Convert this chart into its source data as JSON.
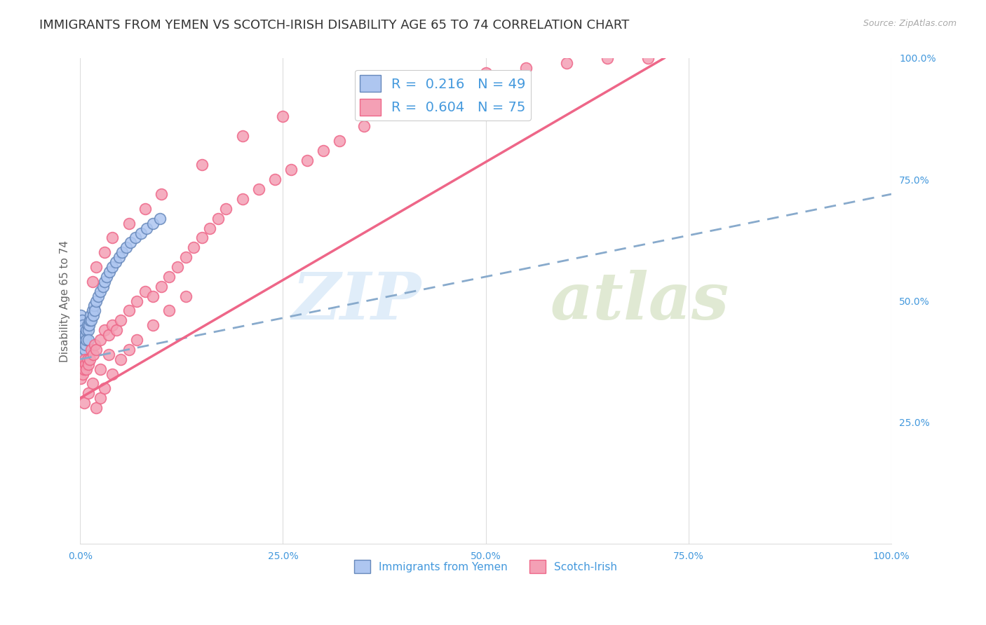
{
  "title": "IMMIGRANTS FROM YEMEN VS SCOTCH-IRISH DISABILITY AGE 65 TO 74 CORRELATION CHART",
  "source": "Source: ZipAtlas.com",
  "ylabel": "Disability Age 65 to 74",
  "xlim": [
    0.0,
    1.0
  ],
  "ylim": [
    0.0,
    1.0
  ],
  "xtick_labels": [
    "0.0%",
    "25.0%",
    "50.0%",
    "75.0%",
    "100.0%"
  ],
  "xtick_positions": [
    0.0,
    0.25,
    0.5,
    0.75,
    1.0
  ],
  "right_ytick_labels": [
    "25.0%",
    "50.0%",
    "75.0%",
    "100.0%"
  ],
  "right_ytick_positions": [
    0.25,
    0.5,
    0.75,
    1.0
  ],
  "legend1_label": "R =  0.216   N = 49",
  "legend2_label": "R =  0.604   N = 75",
  "legend1_color": "#aec6f0",
  "legend2_color": "#f4a0b5",
  "line1_color": "#88aacc",
  "line2_color": "#ee6688",
  "scatter1_color": "#aec6f0",
  "scatter1_edge": "#6688bb",
  "scatter2_color": "#f4a0b5",
  "scatter2_edge": "#ee6688",
  "title_fontsize": 13,
  "axis_label_fontsize": 11,
  "tick_fontsize": 10,
  "background_color": "#ffffff",
  "grid_color": "#dddddd",
  "yemen_x": [
    0.001,
    0.001,
    0.002,
    0.002,
    0.002,
    0.003,
    0.003,
    0.003,
    0.004,
    0.004,
    0.004,
    0.005,
    0.005,
    0.005,
    0.006,
    0.006,
    0.007,
    0.007,
    0.008,
    0.008,
    0.009,
    0.01,
    0.01,
    0.011,
    0.012,
    0.013,
    0.014,
    0.015,
    0.016,
    0.017,
    0.018,
    0.02,
    0.022,
    0.025,
    0.028,
    0.03,
    0.033,
    0.036,
    0.04,
    0.044,
    0.048,
    0.052,
    0.057,
    0.062,
    0.068,
    0.075,
    0.082,
    0.09,
    0.098
  ],
  "yemen_y": [
    0.47,
    0.43,
    0.46,
    0.44,
    0.42,
    0.45,
    0.43,
    0.41,
    0.44,
    0.42,
    0.4,
    0.43,
    0.41,
    0.39,
    0.42,
    0.4,
    0.43,
    0.41,
    0.44,
    0.42,
    0.45,
    0.44,
    0.42,
    0.45,
    0.46,
    0.47,
    0.46,
    0.48,
    0.47,
    0.49,
    0.48,
    0.5,
    0.51,
    0.52,
    0.53,
    0.54,
    0.55,
    0.56,
    0.57,
    0.58,
    0.59,
    0.6,
    0.61,
    0.62,
    0.63,
    0.64,
    0.65,
    0.66,
    0.67
  ],
  "scotch_x": [
    0.001,
    0.002,
    0.003,
    0.004,
    0.005,
    0.006,
    0.007,
    0.008,
    0.009,
    0.01,
    0.012,
    0.014,
    0.016,
    0.018,
    0.02,
    0.025,
    0.03,
    0.035,
    0.04,
    0.045,
    0.05,
    0.06,
    0.07,
    0.08,
    0.09,
    0.1,
    0.11,
    0.12,
    0.13,
    0.14,
    0.15,
    0.16,
    0.17,
    0.18,
    0.2,
    0.22,
    0.24,
    0.26,
    0.28,
    0.3,
    0.32,
    0.35,
    0.38,
    0.41,
    0.45,
    0.5,
    0.55,
    0.6,
    0.65,
    0.7,
    0.02,
    0.025,
    0.03,
    0.04,
    0.05,
    0.06,
    0.07,
    0.09,
    0.11,
    0.13,
    0.015,
    0.02,
    0.03,
    0.04,
    0.06,
    0.08,
    0.1,
    0.15,
    0.2,
    0.25,
    0.005,
    0.01,
    0.015,
    0.025,
    0.035
  ],
  "scotch_y": [
    0.34,
    0.36,
    0.35,
    0.37,
    0.36,
    0.38,
    0.37,
    0.36,
    0.38,
    0.37,
    0.38,
    0.4,
    0.39,
    0.41,
    0.4,
    0.42,
    0.44,
    0.43,
    0.45,
    0.44,
    0.46,
    0.48,
    0.5,
    0.52,
    0.51,
    0.53,
    0.55,
    0.57,
    0.59,
    0.61,
    0.63,
    0.65,
    0.67,
    0.69,
    0.71,
    0.73,
    0.75,
    0.77,
    0.79,
    0.81,
    0.83,
    0.86,
    0.89,
    0.92,
    0.95,
    0.97,
    0.98,
    0.99,
    1.0,
    1.0,
    0.28,
    0.3,
    0.32,
    0.35,
    0.38,
    0.4,
    0.42,
    0.45,
    0.48,
    0.51,
    0.54,
    0.57,
    0.6,
    0.63,
    0.66,
    0.69,
    0.72,
    0.78,
    0.84,
    0.88,
    0.29,
    0.31,
    0.33,
    0.36,
    0.39
  ],
  "line1_x": [
    0.0,
    1.0
  ],
  "line1_y": [
    0.38,
    0.72
  ],
  "line2_x": [
    0.0,
    0.72
  ],
  "line2_y": [
    0.3,
    1.0
  ]
}
